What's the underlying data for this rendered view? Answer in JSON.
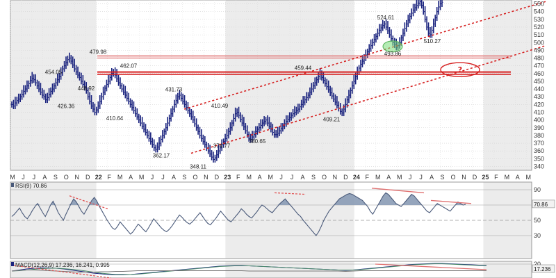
{
  "chart_data": [
    {
      "type": "bar",
      "subtype": "ohlc",
      "ylim": [
        335,
        555
      ],
      "y_ticks": [
        340,
        350,
        360,
        370,
        380,
        390,
        400,
        410,
        420,
        430,
        440,
        450,
        460,
        470,
        480,
        490,
        500,
        510,
        520,
        530,
        540,
        550
      ],
      "x_labels": [
        "M",
        "J",
        "J",
        "A",
        "S",
        "O",
        "N",
        "D",
        "22",
        "F",
        "M",
        "A",
        "M",
        "J",
        "J",
        "A",
        "S",
        "O",
        "N",
        "D",
        "23",
        "F",
        "M",
        "A",
        "M",
        "J",
        "J",
        "A",
        "S",
        "O",
        "N",
        "D",
        "24",
        "F",
        "M",
        "A",
        "M",
        "J",
        "J",
        "A",
        "S",
        "O",
        "N",
        "D",
        "25",
        "F",
        "M",
        "A",
        "M"
      ],
      "series": [
        {
          "values": [
            420,
            418,
            422,
            425,
            427,
            430,
            433,
            437,
            440,
            444,
            447,
            451,
            454,
            452,
            448,
            444,
            440,
            436,
            432,
            430,
            426,
            429,
            433,
            437,
            440,
            444,
            448,
            452,
            456,
            461,
            466,
            470,
            474,
            478,
            480,
            476,
            471,
            466,
            462,
            458,
            455,
            450,
            446,
            442,
            438,
            430,
            424,
            418,
            414,
            410,
            413,
            418,
            424,
            430,
            436,
            441,
            446,
            450,
            455,
            460,
            462,
            458,
            453,
            448,
            444,
            440,
            436,
            432,
            428,
            424,
            420,
            416,
            412,
            408,
            404,
            400,
            396,
            392,
            388,
            384,
            380,
            376,
            372,
            368,
            364,
            362,
            365,
            370,
            375,
            380,
            385,
            390,
            396,
            402,
            408,
            414,
            420,
            425,
            430,
            432,
            428,
            424,
            420,
            416,
            412,
            408,
            404,
            400,
            395,
            390,
            385,
            380,
            376,
            372,
            368,
            364,
            360,
            356,
            352,
            349,
            351,
            355,
            360,
            364,
            368,
            372,
            376,
            380,
            385,
            390,
            396,
            402,
            408,
            410,
            406,
            401,
            396,
            391,
            386,
            381,
            376,
            375,
            378,
            381,
            385,
            388,
            390,
            393,
            396,
            398,
            400,
            396,
            392,
            388,
            384,
            381,
            381,
            383,
            386,
            389,
            392,
            395,
            398,
            401,
            403,
            406,
            408,
            410,
            412,
            414,
            417,
            420,
            423,
            426,
            429,
            432,
            436,
            440,
            444,
            448,
            452,
            456,
            459,
            455,
            451,
            447,
            443,
            439,
            435,
            431,
            427,
            423,
            419,
            415,
            411,
            409,
            414,
            420,
            426,
            432,
            438,
            444,
            450,
            456,
            462,
            467,
            472,
            476,
            480,
            484,
            488,
            492,
            496,
            500,
            504,
            508,
            512,
            516,
            519,
            522,
            524,
            520,
            515,
            510,
            505,
            500,
            497,
            494,
            496,
            500,
            506,
            512,
            518,
            524,
            529,
            534,
            538,
            542,
            545,
            548,
            551,
            553,
            548,
            540,
            530,
            520,
            512,
            510,
            516,
            524,
            532,
            540,
            546,
            550,
            552
          ]
        },
        {
          "name": "Resistance zone top",
          "values": [
            480
          ]
        },
        {
          "name": "Resistance zone bottom",
          "values": [
            473
          ]
        }
      ],
      "annotations": [
        "479.98",
        "454.05",
        "462.07",
        "448.92",
        "426.36",
        "410.64",
        "431.73",
        "410.49",
        "362.17",
        "374.77",
        "380.65",
        "348.11",
        "459.44",
        "409.21",
        "524.61",
        "493.86",
        "510.27",
        "?"
      ]
    },
    {
      "type": "line",
      "label": "RSI(9) 70.86",
      "ylim": [
        0,
        100
      ],
      "y_ticks": [
        30,
        50,
        70,
        90
      ],
      "last_value": "70.86",
      "series": [
        {
          "values": [
            55,
            58,
            62,
            66,
            60,
            55,
            52,
            57,
            63,
            68,
            72,
            66,
            60,
            55,
            62,
            70,
            75,
            68,
            60,
            55,
            50,
            58,
            65,
            72,
            78,
            74,
            68,
            62,
            58,
            64,
            70,
            76,
            80,
            75,
            68,
            62,
            56,
            50,
            45,
            40,
            38,
            42,
            48,
            44,
            40,
            36,
            32,
            35,
            40,
            45,
            42,
            38,
            35,
            40,
            46,
            52,
            48,
            44,
            40,
            37,
            35,
            38,
            42,
            47,
            52,
            57,
            54,
            50,
            47,
            45,
            48,
            52,
            56,
            60,
            55,
            50,
            46,
            44,
            48,
            52,
            57,
            62,
            58,
            54,
            50,
            48,
            52,
            56,
            60,
            65,
            62,
            58,
            55,
            53,
            57,
            61,
            66,
            70,
            68,
            65,
            62,
            60,
            64,
            68,
            72,
            75,
            78,
            74,
            70,
            66,
            62,
            58,
            55,
            50,
            46,
            42,
            38,
            34,
            30,
            35,
            42,
            50,
            56,
            62,
            66,
            70,
            74,
            78,
            80,
            82,
            84,
            85,
            84,
            82,
            80,
            78,
            76,
            72,
            68,
            62,
            58,
            64,
            70,
            76,
            82,
            86,
            84,
            80,
            76,
            72,
            70,
            68,
            72,
            76,
            80,
            84,
            82,
            78,
            74,
            70,
            66,
            62,
            60,
            64,
            68,
            72,
            70,
            68,
            66,
            64,
            62,
            66,
            70,
            74,
            72,
            70,
            71
          ]
        },
        {
          "name": "Overbought",
          "values": [
            70
          ]
        },
        {
          "name": "Midline",
          "values": [
            50
          ]
        },
        {
          "name": "Oversold",
          "values": [
            30
          ]
        }
      ]
    },
    {
      "type": "line",
      "label": "MACD(12,26,9) 17.236, 16.241, 0.995",
      "last_value": "17.236",
      "y_ticks": [
        20
      ],
      "series": [
        {
          "values": [
            0,
            3,
            6,
            8,
            9,
            9,
            8,
            6,
            3,
            0,
            -3,
            -6,
            -8,
            -10,
            -11,
            -11,
            -10,
            -8,
            -6,
            -4,
            -2,
            0,
            2,
            4,
            6,
            8,
            10,
            12,
            14,
            15,
            16,
            16,
            15,
            14,
            13,
            12,
            11,
            10,
            9,
            8,
            7,
            6,
            5,
            4,
            3,
            2,
            3,
            5,
            7,
            9,
            11,
            13,
            15,
            17,
            19,
            20,
            21,
            22,
            22,
            21,
            20,
            19,
            18,
            17,
            17
          ]
        },
        {
          "values": [
            0,
            1,
            3,
            5,
            7,
            8,
            8,
            7,
            5,
            3,
            0,
            -3,
            -6,
            -8,
            -10,
            -10,
            -10,
            -9,
            -7,
            -5,
            -3,
            -1,
            1,
            3,
            5,
            7,
            9,
            11,
            13,
            14,
            15,
            15,
            15,
            14,
            13,
            12,
            11,
            10,
            9,
            8,
            7,
            6,
            5,
            4,
            3,
            3,
            3,
            4,
            6,
            8,
            10,
            12,
            14,
            16,
            18,
            19,
            20,
            21,
            21,
            20,
            19,
            18,
            17,
            16,
            16
          ]
        },
        {
          "values": [
            0,
            2,
            3,
            3,
            2,
            1,
            0,
            -1,
            -2,
            -3,
            -3,
            -3,
            -2,
            -2,
            -1,
            -1,
            0,
            1,
            1,
            1,
            1,
            1,
            1,
            1,
            1,
            1,
            1,
            1,
            1,
            1,
            1,
            1,
            0,
            0,
            0,
            0,
            0,
            0,
            0,
            0,
            0,
            0,
            0,
            0,
            0,
            -1,
            0,
            1,
            1,
            1,
            1,
            1,
            1,
            1,
            1,
            1,
            1,
            1,
            1,
            1,
            1,
            1,
            1,
            1,
            1
          ]
        }
      ]
    }
  ]
}
